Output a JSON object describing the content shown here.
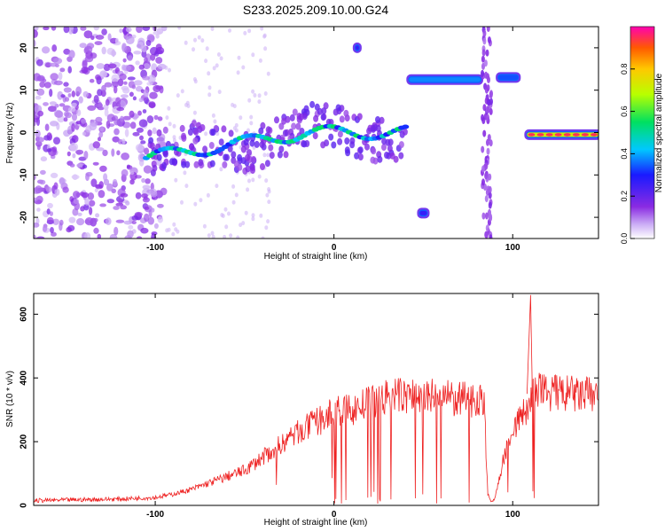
{
  "title": "S233.2025.209.10.00.G24",
  "chart_data": [
    {
      "type": "heatmap",
      "xlabel": "Height of straight line (km)",
      "ylabel": "Frequency (Hz)",
      "xlim": [
        -168,
        148
      ],
      "ylim": [
        -25,
        25
      ],
      "xticks": [
        -100,
        0,
        100
      ],
      "yticks": [
        -20,
        -10,
        0,
        10,
        20
      ],
      "colorbar": {
        "label": "Normalized spectral amplitude",
        "range": [
          0.0,
          1.0
        ],
        "ticks": [
          "0.0",
          "0.2",
          "0.4",
          "0.6",
          "0.8"
        ],
        "tick_values": [
          0.0,
          0.2,
          0.4,
          0.6,
          0.8
        ],
        "colormap": "rainbow (white-violet-blue-cyan-green-yellow-red)"
      },
      "features": [
        {
          "name": "noise",
          "x": [
            -168,
            -95
          ],
          "y": [
            -25,
            25
          ],
          "amplitude": 0.15
        },
        {
          "name": "ridge",
          "x": [
            -105,
            40
          ],
          "y": [
            -6,
            0
          ],
          "amplitude": 0.4
        },
        {
          "name": "line",
          "x": [
            42,
            82
          ],
          "y": [
            12.5,
            12.5
          ],
          "amplitude": 0.5
        },
        {
          "name": "line",
          "x": [
            92,
            103
          ],
          "y": [
            13,
            13
          ],
          "amplitude": 0.45
        },
        {
          "name": "line",
          "x": [
            48,
            52
          ],
          "y": [
            -19,
            -19
          ],
          "amplitude": 0.35
        },
        {
          "name": "line",
          "x": [
            12,
            14
          ],
          "y": [
            20,
            20
          ],
          "amplitude": 0.35
        },
        {
          "name": "line",
          "x": [
            108,
            148
          ],
          "y": [
            -0.5,
            -0.5
          ],
          "amplitude": 0.95
        }
      ]
    },
    {
      "type": "line",
      "xlabel": "Height of straight line (km)",
      "ylabel": "SNR (10 * v/v)",
      "xlim": [
        -168,
        148
      ],
      "ylim": [
        0,
        665
      ],
      "xticks": [
        -100,
        0,
        100
      ],
      "yticks": [
        0,
        200,
        400,
        600
      ],
      "series": [
        {
          "color": "#ee2222",
          "x": [
            -168,
            -140,
            -120,
            -100,
            -90,
            -80,
            -70,
            -60,
            -50,
            -40,
            -30,
            -20,
            -10,
            0,
            10,
            20,
            30,
            40,
            50,
            60,
            70,
            80,
            84,
            86,
            88,
            90,
            95,
            100,
            105,
            108,
            110,
            112,
            115,
            120,
            130,
            140,
            148
          ],
          "y": [
            15,
            18,
            20,
            25,
            35,
            50,
            70,
            90,
            110,
            150,
            190,
            230,
            260,
            290,
            300,
            320,
            340,
            345,
            340,
            340,
            330,
            335,
            330,
            40,
            10,
            20,
            150,
            240,
            280,
            300,
            340,
            350,
            360,
            355,
            350,
            345,
            350
          ]
        },
        {
          "color": "#ee2222",
          "x": [
            108,
            110,
            111
          ],
          "y": [
            350,
            660,
            350
          ]
        }
      ]
    }
  ]
}
